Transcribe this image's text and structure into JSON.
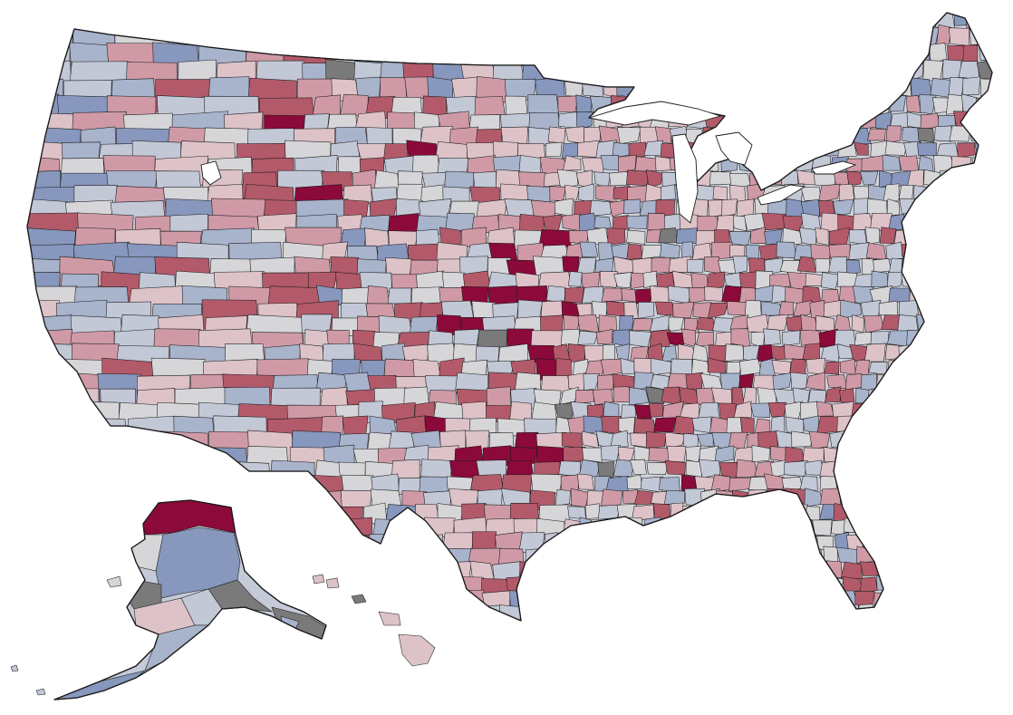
{
  "map": {
    "type": "choropleth",
    "subject": "us-counties",
    "colors": {
      "deep_red": "#8b0a3a",
      "red": "#b35a6a",
      "light_red": "#cf9aa6",
      "pale_red": "#ddc3c8",
      "neutral": "#d6d6d9",
      "pale_blue": "#c2c8d6",
      "blue": "#a8b3cc",
      "deep_blue": "#8797bd",
      "no_data": "#7a7a7a",
      "border": "#1a1a1a"
    },
    "regions": [
      {
        "id": "contiguous-us"
      },
      {
        "id": "alaska"
      },
      {
        "id": "hawaii"
      }
    ]
  }
}
